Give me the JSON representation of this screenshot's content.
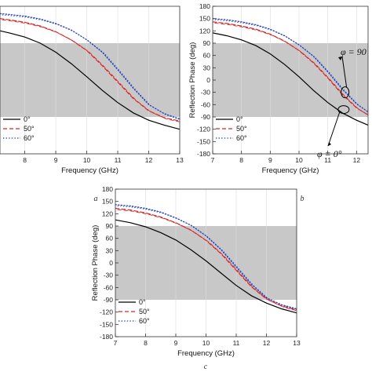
{
  "chart_data": [
    {
      "type": "line",
      "panel_label": "a",
      "xlabel": "Frequency (GHz)",
      "ylabel": "",
      "xlim": [
        7.2,
        13
      ],
      "ylim": [
        -180,
        180
      ],
      "shaded_band": [
        -90,
        90
      ],
      "xticks": [
        "8",
        "9",
        "10",
        "11",
        "12",
        "13"
      ],
      "yticks": [],
      "legend": "bottom-left",
      "series": [
        {
          "name": "0°",
          "color": "#000000",
          "dash": "solid",
          "x": [
            7.2,
            7.5,
            8,
            8.5,
            9,
            9.5,
            10,
            10.5,
            11,
            11.5,
            12,
            12.5,
            13
          ],
          "y": [
            120,
            115,
            105,
            90,
            68,
            40,
            8,
            -25,
            -55,
            -80,
            -98,
            -110,
            -120
          ]
        },
        {
          "name": "50°",
          "color": "#d62728",
          "dash": "dashed",
          "x": [
            7.2,
            7.5,
            8,
            8.5,
            9,
            9.5,
            10,
            10.5,
            11,
            11.5,
            12,
            12.5,
            13
          ],
          "y": [
            150,
            147,
            141,
            132,
            118,
            98,
            72,
            35,
            -5,
            -45,
            -75,
            -92,
            -100
          ]
        },
        {
          "name": "60°",
          "color": "#1f3fbf",
          "dash": "dotted",
          "x": [
            7.2,
            7.5,
            8,
            8.5,
            9,
            9.5,
            10,
            10.5,
            11,
            11.5,
            12,
            12.5,
            13
          ],
          "y": [
            162,
            160,
            156,
            149,
            138,
            122,
            98,
            68,
            25,
            -20,
            -60,
            -82,
            -95
          ]
        }
      ]
    },
    {
      "type": "line",
      "panel_label": "b",
      "xlabel": "Frequency (GHz)",
      "ylabel": "Reflection Phase (deg)",
      "xlim": [
        7,
        12.4
      ],
      "ylim": [
        -180,
        180
      ],
      "shaded_band": [
        -90,
        90
      ],
      "xticks": [
        "7",
        "8",
        "9",
        "10",
        "11",
        "12"
      ],
      "yticks": [
        "180",
        "150",
        "120",
        "90",
        "60",
        "30",
        "0",
        "-30",
        "-60",
        "-90",
        "-120",
        "-150",
        "-180"
      ],
      "legend": "bottom-left",
      "annotations": [
        "φ = 90",
        "φ = 0°"
      ],
      "series": [
        {
          "name": "0°",
          "color": "#000000",
          "dash": "solid",
          "x": [
            7,
            7.5,
            8,
            8.5,
            9,
            9.5,
            10,
            10.5,
            11,
            11.5,
            12,
            12.4
          ],
          "y": [
            115,
            108,
            98,
            84,
            64,
            38,
            8,
            -25,
            -55,
            -80,
            -98,
            -110
          ]
        },
        {
          "name": "50°",
          "color": "#d62728",
          "dash": "dashed",
          "x": [
            7,
            7.5,
            8,
            8.5,
            9,
            9.5,
            10,
            10.5,
            11,
            11.5,
            12,
            12.4
          ],
          "y": [
            142,
            138,
            132,
            124,
            112,
            95,
            72,
            42,
            5,
            -35,
            -68,
            -85
          ]
        },
        {
          "name": "60°",
          "color": "#1f3fbf",
          "dash": "dotted",
          "x": [
            7,
            7.5,
            8,
            8.5,
            9,
            9.5,
            10,
            10.5,
            11,
            11.5,
            12,
            12.4
          ],
          "y": [
            150,
            147,
            142,
            135,
            124,
            108,
            86,
            58,
            20,
            -22,
            -58,
            -78
          ]
        }
      ]
    },
    {
      "type": "line",
      "panel_label": "c",
      "xlabel": "Frequency (GHz)",
      "ylabel": "Reflection Phase (deg)",
      "xlim": [
        7,
        13
      ],
      "ylim": [
        -180,
        180
      ],
      "shaded_band": [
        -90,
        90
      ],
      "xticks": [
        "7",
        "8",
        "9",
        "10",
        "11",
        "12",
        "13"
      ],
      "yticks": [
        "180",
        "150",
        "120",
        "90",
        "60",
        "30",
        "0",
        "-30",
        "-60",
        "-90",
        "-120",
        "-150",
        "-180"
      ],
      "legend": "bottom-left",
      "series": [
        {
          "name": "0°",
          "color": "#000000",
          "dash": "solid",
          "x": [
            7,
            7.5,
            8,
            8.5,
            9,
            9.5,
            10,
            10.5,
            11,
            11.5,
            12,
            12.5,
            13
          ],
          "y": [
            105,
            98,
            88,
            74,
            56,
            32,
            5,
            -25,
            -55,
            -80,
            -98,
            -112,
            -122
          ]
        },
        {
          "name": "50°",
          "color": "#d62728",
          "dash": "dashed",
          "x": [
            7,
            7.5,
            8,
            8.5,
            9,
            9.5,
            10,
            10.5,
            11,
            11.5,
            12,
            12.5,
            13
          ],
          "y": [
            133,
            129,
            122,
            112,
            98,
            80,
            55,
            22,
            -18,
            -58,
            -88,
            -105,
            -115
          ]
        },
        {
          "name": "60°",
          "color": "#1f3fbf",
          "dash": "dotted",
          "x": [
            7,
            7.5,
            8,
            8.5,
            9,
            9.5,
            10,
            10.5,
            11,
            11.5,
            12,
            12.5,
            13
          ],
          "y": [
            142,
            139,
            133,
            124,
            110,
            92,
            66,
            32,
            -10,
            -52,
            -85,
            -102,
            -112
          ]
        }
      ]
    }
  ]
}
